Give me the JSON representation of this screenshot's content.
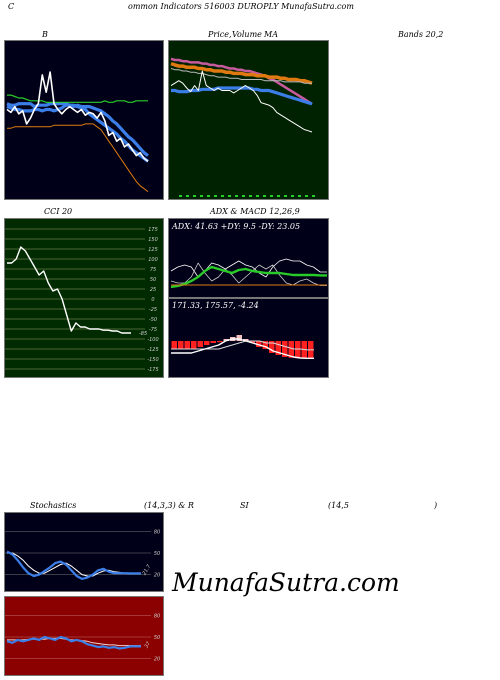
{
  "header": {
    "c_letter": "C",
    "title": "ommon  Indicators 516003 DUROPLY MunafaSutra.com",
    "bands_title": "Bands 20,2"
  },
  "top_row": {
    "bollinger_label": "B",
    "price_label": "Price,",
    "volume_label": "Volume",
    "ma_label": "MA",
    "cci_label": "CCI 20",
    "adx_label": "ADX  & MACD 12,26,9",
    "adx_values": "ADX: 41.63  +DY: 9.5  -DY: 23.05",
    "macd_values": "171.33,  175.57,  -4.24"
  },
  "bottom_row": {
    "stoch_label": "Stochastics",
    "stoch_params": "(14,3,3) & R",
    "rsi_label": "SI",
    "rsi_params": "(14,5",
    "rsi_close": ")"
  },
  "watermark": "MunafaSutra.com",
  "colors": {
    "panel_dark": "#000018",
    "panel_green": "#002200",
    "panel_cci": "#002a00",
    "panel_rsi": "#8b0000",
    "white": "#ffffff",
    "blue": "#3b7ee8",
    "orange": "#e07a10",
    "green": "#28cc28",
    "red": "#ff2020"
  },
  "chart_data": [
    {
      "type": "line",
      "name_label": "B",
      "x": [
        1,
        2,
        3,
        4,
        5,
        6,
        7,
        8,
        9,
        10,
        11,
        12,
        13,
        14,
        15,
        16,
        17,
        18,
        19,
        20,
        21,
        22,
        23,
        24,
        25,
        26,
        27,
        28,
        29,
        30,
        31,
        32,
        33,
        34,
        35,
        36,
        37
      ],
      "series": [
        {
          "values": [
            62,
            61,
            61,
            62,
            62,
            62,
            62,
            60,
            61,
            61,
            61,
            62,
            62,
            62,
            62,
            62,
            61,
            61,
            60,
            59,
            58,
            55,
            53,
            51,
            49,
            47,
            45,
            43,
            41,
            38,
            36,
            33,
            30,
            28,
            26,
            24,
            22
          ]
        },
        {
          "values": [
            68,
            68,
            67,
            66,
            66,
            65,
            64,
            64,
            64,
            64,
            63,
            63,
            63,
            63,
            63,
            63,
            63,
            63,
            63,
            63,
            63,
            63,
            63,
            63,
            63,
            64,
            63,
            63,
            64,
            64,
            64,
            63,
            63,
            64,
            64,
            64,
            64
          ]
        },
        {
          "values": [
            60,
            59,
            58,
            58,
            57,
            57,
            57,
            58,
            58,
            57,
            58,
            58,
            57,
            58,
            59,
            61,
            61,
            60,
            61,
            60,
            60,
            60,
            59,
            58,
            57,
            55,
            53,
            50,
            48,
            45,
            42,
            39,
            37,
            34,
            31,
            28,
            26
          ]
        },
        {
          "values": [
            45,
            45,
            46,
            46,
            46,
            46,
            46,
            46,
            46,
            46,
            46,
            46,
            47,
            47,
            47,
            47,
            47,
            47,
            47,
            47,
            48,
            48,
            48,
            46,
            44,
            40,
            36,
            32,
            28,
            24,
            20,
            16,
            12,
            8,
            5,
            3,
            1
          ]
        },
        {
          "values": [
            58,
            56,
            60,
            55,
            57,
            48,
            52,
            58,
            62,
            82,
            70,
            84,
            62,
            58,
            55,
            58,
            60,
            58,
            56,
            58,
            54,
            56,
            55,
            52,
            56,
            50,
            40,
            42,
            36,
            38,
            32,
            34,
            30,
            26,
            28,
            24,
            22
          ]
        }
      ]
    },
    {
      "type": "line",
      "name_label": "Price, Volume MA",
      "x": [
        1,
        2,
        3,
        4,
        5,
        6,
        7,
        8,
        9,
        10,
        11,
        12,
        13,
        14,
        15,
        16,
        17,
        18,
        19,
        20,
        21,
        22,
        23,
        24,
        25,
        26,
        27,
        28,
        29,
        30,
        31,
        32,
        33,
        34,
        35,
        36,
        37
      ],
      "series": [
        {
          "values": [
            92,
            91,
            91,
            90,
            90,
            89,
            89,
            89,
            88,
            88,
            87,
            87,
            86,
            86,
            85,
            84,
            84,
            83,
            83,
            82,
            82,
            81,
            80,
            79,
            78,
            76,
            75,
            73,
            71,
            69,
            67,
            65,
            63,
            61,
            59,
            57,
            55
          ]
        },
        {
          "values": [
            88,
            87,
            86,
            86,
            85,
            85,
            85,
            84,
            84,
            83,
            83,
            82,
            82,
            82,
            81,
            81,
            80,
            80,
            80,
            79,
            79,
            79,
            78,
            78,
            78,
            77,
            77,
            77,
            76,
            76,
            75,
            75,
            75,
            74,
            74,
            73,
            72
          ]
        },
        {
          "values": [
            84,
            83,
            83,
            82,
            82,
            81,
            81,
            80,
            80,
            79,
            78,
            78,
            77,
            77,
            77,
            76,
            76,
            76,
            75,
            75,
            75,
            75,
            75,
            75,
            74,
            74,
            74,
            74,
            74,
            73,
            73,
            73,
            73,
            73,
            72,
            72,
            72
          ]
        },
        {
          "values": [
            66,
            66,
            65,
            65,
            65,
            66,
            66,
            66,
            67,
            67,
            67,
            67,
            68,
            68,
            68,
            68,
            68,
            68,
            68,
            68,
            68,
            67,
            67,
            66,
            66,
            66,
            65,
            64,
            63,
            62,
            61,
            60,
            59,
            58,
            57,
            56,
            55
          ]
        },
        {
          "values": [
            70,
            72,
            74,
            72,
            68,
            65,
            70,
            66,
            82,
            70,
            68,
            66,
            68,
            66,
            66,
            66,
            64,
            66,
            68,
            70,
            68,
            66,
            62,
            56,
            55,
            54,
            52,
            48,
            46,
            44,
            42,
            40,
            38,
            36,
            34,
            33,
            32
          ]
        }
      ]
    },
    {
      "type": "line",
      "name_label": "CCI 20",
      "yticks": [
        175,
        150,
        125,
        100,
        75,
        50,
        25,
        0,
        -25,
        -50,
        -75,
        -100,
        -125,
        -150,
        -175
      ],
      "end_label": "-85",
      "x": [
        1,
        2,
        3,
        4,
        5,
        6,
        7,
        8,
        9,
        10,
        11,
        12,
        13,
        14,
        15,
        16,
        17,
        18,
        19,
        20,
        21,
        22,
        23,
        24,
        25,
        26,
        27,
        28
      ],
      "series": [
        {
          "values": [
            90,
            90,
            100,
            130,
            120,
            100,
            80,
            60,
            70,
            40,
            20,
            25,
            0,
            -40,
            -80,
            -60,
            -70,
            -70,
            -75,
            -75,
            -75,
            -78,
            -78,
            -80,
            -80,
            -85,
            -85,
            -85
          ]
        }
      ]
    },
    {
      "type": "line",
      "name_label": "ADX",
      "series": [
        {
          "name": "ADX",
          "values": [
            30,
            31,
            33,
            36,
            40,
            46,
            50,
            48,
            46,
            44,
            47,
            48,
            46,
            45,
            44,
            44,
            44,
            43,
            42,
            42,
            42,
            42,
            41.63,
            41.63
          ]
        },
        {
          "name": "+DY",
          "values": [
            14,
            12,
            12,
            18,
            32,
            22,
            14,
            18,
            26,
            20,
            12,
            18,
            24,
            30,
            26,
            30,
            20,
            12,
            10,
            14,
            16,
            12,
            9.5,
            9.5
          ]
        },
        {
          "name": "-DY",
          "values": [
            24,
            28,
            30,
            28,
            18,
            24,
            32,
            30,
            26,
            30,
            34,
            30,
            28,
            22,
            18,
            28,
            34,
            36,
            34,
            34,
            30,
            28,
            23.05,
            23.05
          ]
        }
      ]
    },
    {
      "type": "bar",
      "name_label": "MACD",
      "values_text": "171.33, 175.57, -4.24",
      "series": [
        {
          "name": "MACD",
          "values": [
            174,
            174,
            174,
            174,
            175,
            176,
            177,
            178,
            180,
            181,
            181,
            180,
            179,
            178,
            177,
            175,
            174,
            173,
            172,
            171.5,
            171.33,
            171.33
          ]
        },
        {
          "name": "Signal",
          "values": [
            176,
            176,
            176,
            176,
            176,
            176,
            176,
            176,
            177,
            178,
            179,
            180,
            180,
            180,
            179,
            179,
            178,
            177,
            176,
            176,
            175.57,
            175.57
          ]
        },
        {
          "name": "Hist",
          "values": [
            -2,
            -2,
            -2,
            -2,
            -1.5,
            -1,
            -0.5,
            -0.3,
            0.5,
            1,
            1.5,
            0.5,
            -0.5,
            -1.5,
            -2,
            -3,
            -3.5,
            -4,
            -4.2,
            -4.3,
            -4.24,
            -4.24
          ]
        }
      ]
    },
    {
      "type": "line",
      "name_label": "Stochastics (14,3,3)",
      "yticks": [
        80,
        50,
        20
      ],
      "end_label": "21.7",
      "x": [
        1,
        2,
        3,
        4,
        5,
        6,
        7,
        8,
        9,
        10,
        11,
        12,
        13,
        14,
        15,
        16,
        17,
        18,
        19,
        20,
        21,
        22,
        23,
        24,
        25,
        26
      ],
      "series": [
        {
          "values": [
            52,
            48,
            40,
            30,
            22,
            18,
            20,
            25,
            30,
            36,
            38,
            34,
            26,
            18,
            14,
            16,
            20,
            26,
            28,
            24,
            22,
            22,
            22,
            21.7,
            21.7,
            21.7
          ]
        },
        {
          "values": [
            50,
            50,
            46,
            40,
            32,
            26,
            22,
            22,
            26,
            30,
            34,
            36,
            32,
            26,
            20,
            18,
            18,
            22,
            25,
            26,
            24,
            23,
            22,
            22,
            22,
            22
          ]
        }
      ]
    },
    {
      "type": "line",
      "name_label": "RSI (14)",
      "yticks": [
        80,
        50,
        20
      ],
      "end_label": "37",
      "x": [
        1,
        2,
        3,
        4,
        5,
        6,
        7,
        8,
        9,
        10,
        11,
        12,
        13,
        14,
        15,
        16,
        17,
        18,
        19,
        20,
        21,
        22,
        23,
        24,
        25,
        26
      ],
      "series": [
        {
          "values": [
            44,
            42,
            46,
            44,
            46,
            48,
            46,
            50,
            48,
            46,
            50,
            48,
            44,
            46,
            44,
            40,
            38,
            36,
            37,
            35,
            36,
            34,
            35,
            37,
            37,
            37
          ]
        },
        {
          "values": [
            46,
            46,
            46,
            46,
            47,
            47,
            47,
            47,
            48,
            48,
            48,
            47,
            46,
            46,
            45,
            44,
            42,
            41,
            40,
            39,
            39,
            38,
            38,
            38,
            38,
            38
          ]
        }
      ]
    }
  ]
}
